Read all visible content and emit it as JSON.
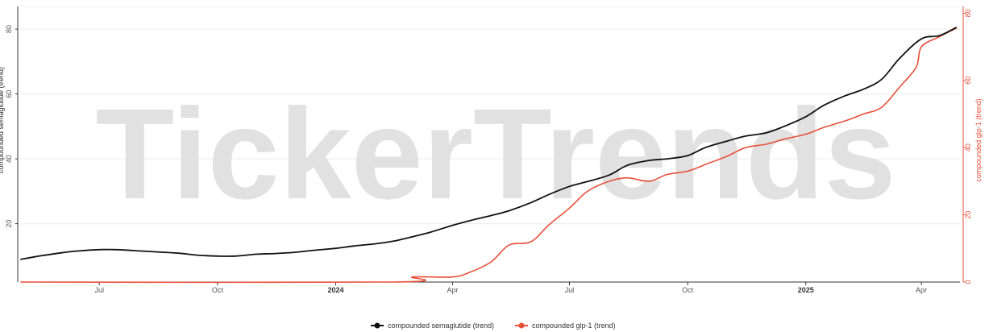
{
  "watermark": "TickerTrends",
  "colors": {
    "series_semaglutide": "#111111",
    "series_glp1": "#e8503a",
    "grid": "#ececec",
    "axis_right": "#e8503a"
  },
  "legend": {
    "items": [
      {
        "label": "compounded semaglutide  (trend)",
        "color": "#111111"
      },
      {
        "label": "compounded glp-1  (trend)",
        "color": "#e8503a"
      }
    ],
    "position": "bottom-center"
  },
  "chart_data": {
    "type": "line",
    "grid": true,
    "x_range": [
      "2023-05-01",
      "2025-05-01"
    ],
    "x_ticks": [
      {
        "date": "2023-07-01",
        "label": "Jul",
        "bold": false
      },
      {
        "date": "2023-10-01",
        "label": "Oct",
        "bold": false
      },
      {
        "date": "2024-01-01",
        "label": "2024",
        "bold": true
      },
      {
        "date": "2024-04-01",
        "label": "Apr",
        "bold": false
      },
      {
        "date": "2024-07-01",
        "label": "Jul",
        "bold": false
      },
      {
        "date": "2024-10-01",
        "label": "Oct",
        "bold": false
      },
      {
        "date": "2025-01-01",
        "label": "2025",
        "bold": true
      },
      {
        "date": "2025-04-01",
        "label": "Apr",
        "bold": false
      }
    ],
    "y_left": {
      "label": "compounded semaglutide  (trend)",
      "ylim": [
        2,
        87
      ],
      "ticks": [
        20,
        40,
        60,
        80
      ]
    },
    "y_right": {
      "label": "compounded glp-1  (trend)",
      "ylim": [
        0,
        82
      ],
      "ticks": [
        0,
        20,
        40,
        60,
        80
      ]
    },
    "series": [
      {
        "name": "compounded semaglutide  (trend)",
        "axis": "left",
        "x": [
          "2023-05-01",
          "2023-05-15",
          "2023-06-01",
          "2023-06-15",
          "2023-07-01",
          "2023-07-15",
          "2023-08-01",
          "2023-08-15",
          "2023-09-01",
          "2023-09-15",
          "2023-10-01",
          "2023-10-15",
          "2023-11-01",
          "2023-11-15",
          "2023-12-01",
          "2023-12-15",
          "2024-01-01",
          "2024-01-15",
          "2024-02-01",
          "2024-02-15",
          "2024-03-01",
          "2024-03-15",
          "2024-04-01",
          "2024-04-15",
          "2024-05-01",
          "2024-05-15",
          "2024-06-01",
          "2024-06-15",
          "2024-07-01",
          "2024-07-15",
          "2024-08-01",
          "2024-08-15",
          "2024-09-01",
          "2024-09-15",
          "2024-10-01",
          "2024-10-15",
          "2024-11-01",
          "2024-11-15",
          "2024-12-01",
          "2024-12-15",
          "2025-01-01",
          "2025-01-15",
          "2025-02-01",
          "2025-02-15",
          "2025-03-01",
          "2025-03-15",
          "2025-04-01",
          "2025-04-15",
          "2025-04-28"
        ],
        "y": [
          9,
          10,
          11,
          11.6,
          12,
          12,
          11.6,
          11.3,
          10.9,
          10.3,
          10,
          10,
          10.6,
          10.8,
          11.2,
          11.8,
          12.4,
          13.1,
          13.8,
          14.6,
          16,
          17.4,
          19.5,
          21,
          22.5,
          24,
          26.5,
          29,
          31.5,
          33,
          35,
          38,
          39.5,
          40,
          41,
          43.5,
          45.5,
          47,
          48,
          50,
          53,
          56.5,
          59.5,
          61.5,
          64.5,
          71,
          77,
          78,
          80.5
        ]
      },
      {
        "name": "compounded glp-1  (trend)",
        "axis": "right",
        "x": [
          "2023-05-01",
          "2024-02-15",
          "2024-03-01",
          "2024-04-01",
          "2024-04-15",
          "2024-05-01",
          "2024-05-15",
          "2024-06-01",
          "2024-06-15",
          "2024-07-01",
          "2024-07-15",
          "2024-08-01",
          "2024-08-15",
          "2024-09-01",
          "2024-09-15",
          "2024-10-01",
          "2024-10-15",
          "2024-11-01",
          "2024-11-15",
          "2024-12-01",
          "2024-12-15",
          "2025-01-01",
          "2025-01-15",
          "2025-02-01",
          "2025-02-15",
          "2025-03-01",
          "2025-03-15",
          "2025-03-28",
          "2025-04-01",
          "2025-04-15",
          "2025-04-28"
        ],
        "y": [
          0,
          0,
          1.5,
          1.5,
          3,
          6,
          11,
          12,
          17,
          22,
          27,
          30,
          31,
          30,
          32,
          33,
          35,
          37.5,
          40,
          41,
          42.5,
          44,
          46,
          48,
          50,
          52,
          58,
          64,
          70,
          73,
          75.5
        ]
      }
    ]
  }
}
